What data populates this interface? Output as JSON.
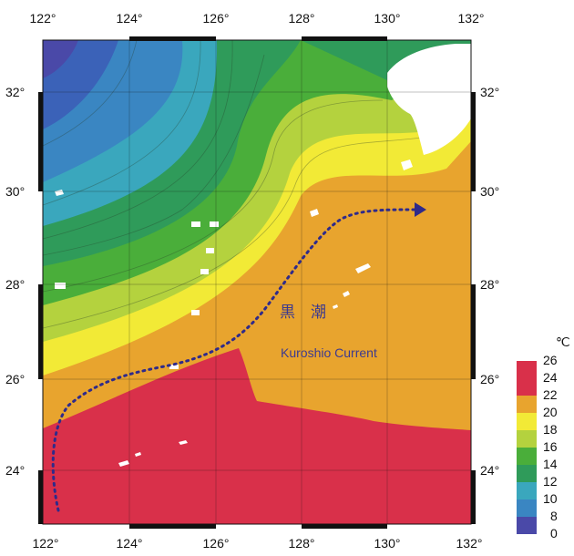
{
  "map": {
    "longitude_ticks": [
      "122°",
      "124°",
      "126°",
      "128°",
      "130°",
      "132°"
    ],
    "latitude_ticks": [
      "32°",
      "30°",
      "28°",
      "26°",
      "24°"
    ],
    "annotations": {
      "current_name_jp": "黒　潮",
      "current_name_en": "Kuroshio Current"
    },
    "colorbar": {
      "unit": "℃",
      "ticks": [
        "26",
        "24",
        "22",
        "20",
        "18",
        "16",
        "14",
        "12",
        "10",
        "8",
        "0"
      ]
    },
    "colors": {
      "c0": "#4a49a8",
      "c8": "#3b62b8",
      "c10": "#3a86c2",
      "c12": "#3aa7bd",
      "c14": "#2f9b5a",
      "c16": "#4aae3a",
      "c18": "#b4d23e",
      "c20": "#f2ea36",
      "c22": "#e8a42e",
      "c24": "#d9304a",
      "current_arrow": "#2f2a8a"
    }
  }
}
